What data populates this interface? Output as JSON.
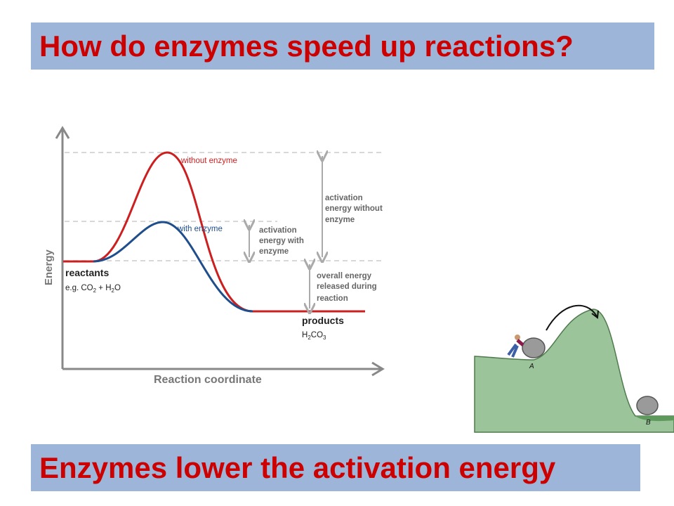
{
  "title": "How do enzymes speed up reactions?",
  "bottom_text": "Enzymes lower the activation energy",
  "diagram": {
    "y_axis_label": "Energy",
    "x_axis_label": "Reaction coordinate",
    "curve_without_label": "without enzyme",
    "curve_with_label": "with enzyme",
    "reactants_label": "reactants",
    "reactants_example_prefix": "e.g. CO",
    "reactants_example_sub1": "2",
    "reactants_example_mid": " + H",
    "reactants_example_sub2": "2",
    "reactants_example_suffix": "O",
    "products_label": "products",
    "products_formula_a": "H",
    "products_formula_sub1": "2",
    "products_formula_b": "CO",
    "products_formula_sub2": "3",
    "annotation_with": [
      "activation",
      "energy with",
      "enzyme"
    ],
    "annotation_without": [
      "activation",
      "energy without",
      "enzyme"
    ],
    "annotation_overall": [
      "overall energy",
      "released during",
      "reaction"
    ],
    "colors": {
      "without": "#cc1f1f",
      "with": "#1f4e8c",
      "guide": "#aaaaaa",
      "axis": "#888888"
    }
  },
  "illustration": {
    "label_a": "A",
    "label_b": "B"
  }
}
